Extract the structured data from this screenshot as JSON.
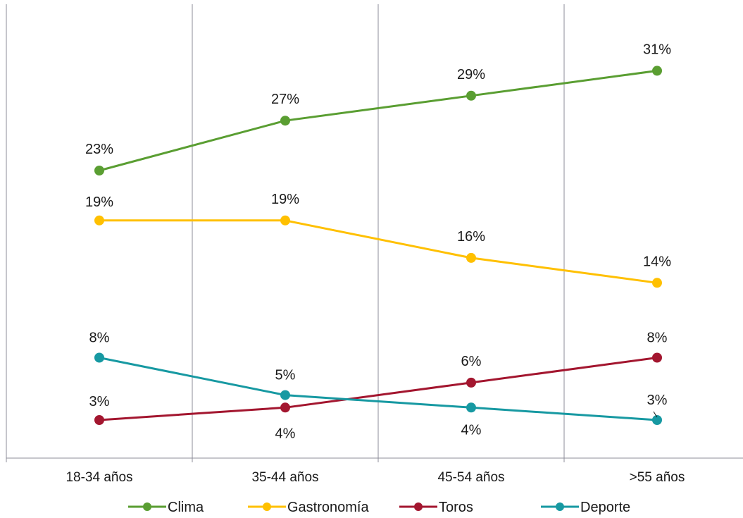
{
  "chart_data": {
    "type": "line",
    "categories": [
      "18-34 años",
      "35-44 años",
      "45-54 años",
      ">55 años"
    ],
    "series": [
      {
        "name": "Clima",
        "color": "#5a9e32",
        "values": [
          23,
          27,
          29,
          31
        ],
        "labels": [
          "23%",
          "27%",
          "29%",
          "31%"
        ]
      },
      {
        "name": "Gastronomía",
        "color": "#ffc000",
        "values": [
          19,
          19,
          16,
          14
        ],
        "labels": [
          "19%",
          "19%",
          "16%",
          "14%"
        ]
      },
      {
        "name": "Toros",
        "color": "#a3162f",
        "values": [
          3,
          4,
          6,
          8
        ],
        "labels": [
          "3%",
          "4%",
          "6%",
          "8%"
        ]
      },
      {
        "name": "Deporte",
        "color": "#1799a2",
        "values": [
          8,
          5,
          4,
          3
        ],
        "labels": [
          "8%",
          "5%",
          "4%",
          "3%"
        ]
      }
    ],
    "gridlines": "vertical",
    "legend_position": "bottom",
    "title": "",
    "xlabel": "",
    "ylabel": ""
  }
}
